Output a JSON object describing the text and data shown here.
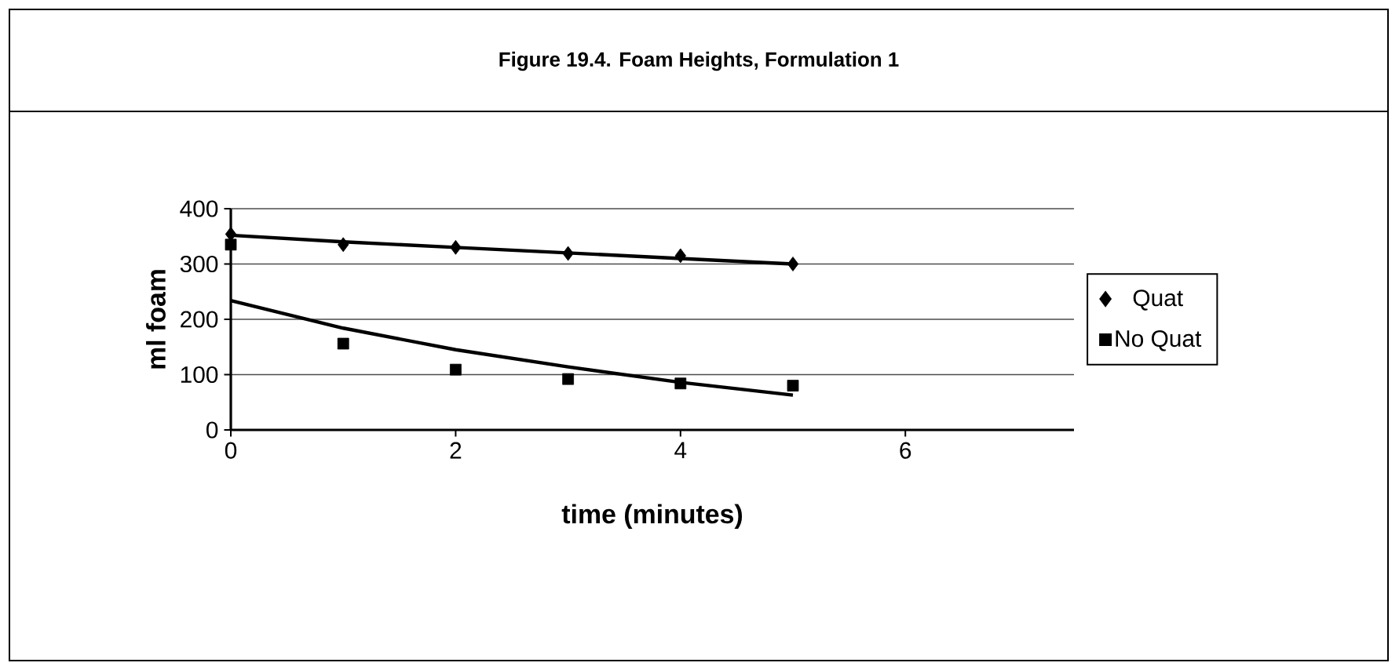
{
  "chart_data": {
    "type": "scatter",
    "title": "Figure 19.4. Foam Heights, Formulation 1",
    "xlabel": "time (minutes)",
    "ylabel": "ml foam",
    "xlim": [
      0,
      7.5
    ],
    "xticks": [
      0,
      2,
      4,
      6
    ],
    "ylim": [
      0,
      400
    ],
    "yticks": [
      0,
      100,
      200,
      300,
      400
    ],
    "grid": "y",
    "legend": "right",
    "series": [
      {
        "name": "Quat",
        "marker": "diamond",
        "color": "#000000",
        "x": [
          0,
          1,
          2,
          3,
          4,
          5
        ],
        "values": [
          354,
          335,
          330,
          319,
          315,
          300
        ]
      },
      {
        "name": "No Quat",
        "marker": "square",
        "color": "#000000",
        "x": [
          0,
          1,
          2,
          3,
          4,
          5
        ],
        "values": [
          335,
          156,
          109,
          92,
          84,
          80
        ]
      },
      {
        "type": "line",
        "marker": "none",
        "color": "#000000",
        "x": [
          0,
          1,
          2,
          3,
          4,
          5
        ],
        "values": [
          352,
          340,
          330,
          320,
          310,
          300
        ]
      },
      {
        "type": "line",
        "marker": "none",
        "color": "#000000",
        "x": [
          0,
          1,
          2,
          3,
          4,
          5
        ],
        "values": [
          234,
          184,
          145,
          114,
          86,
          63
        ]
      }
    ]
  }
}
